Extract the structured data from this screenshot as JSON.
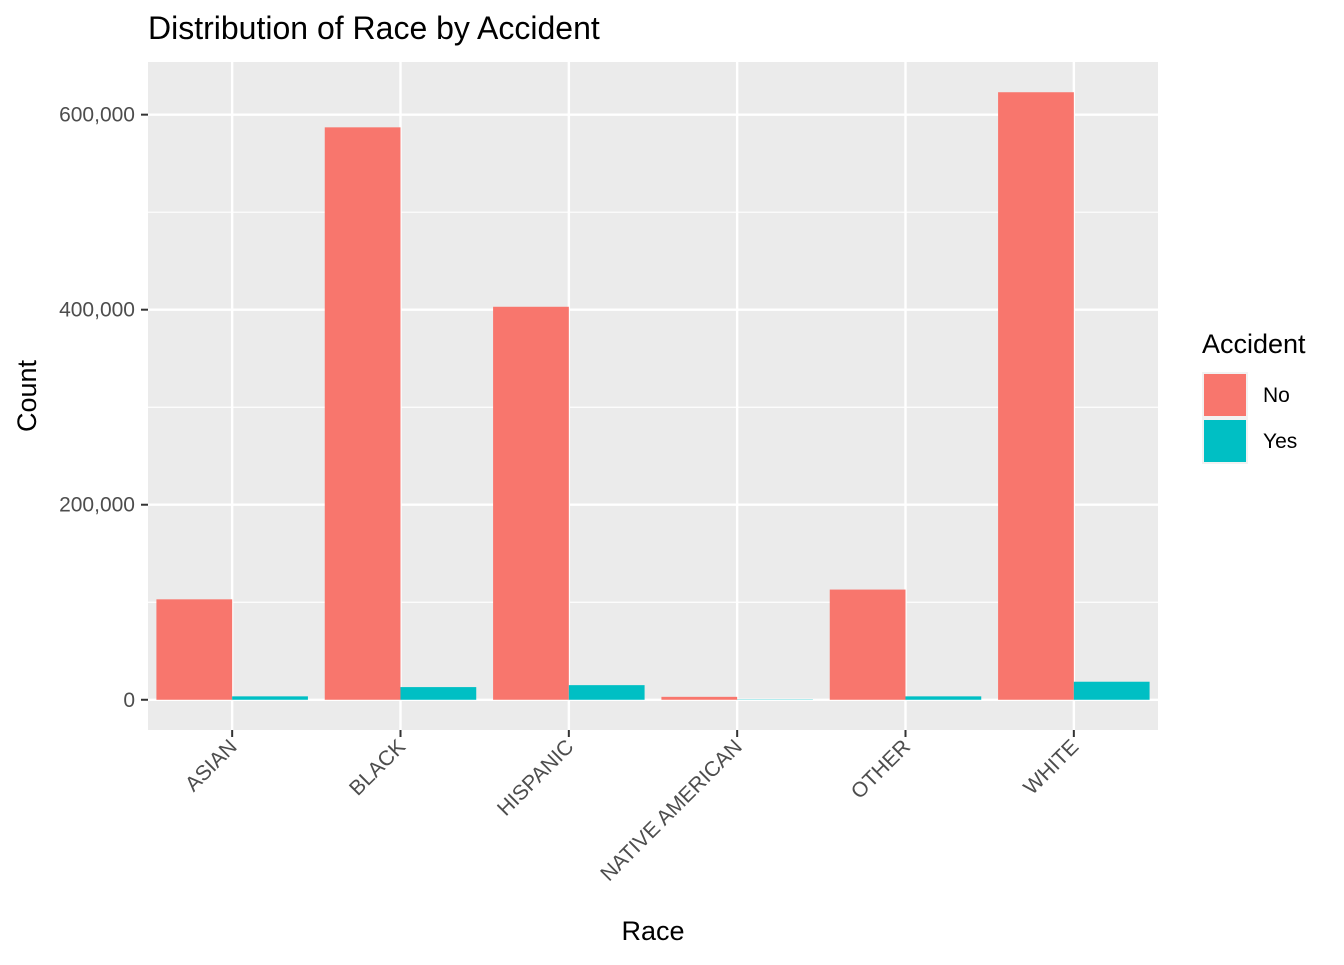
{
  "chart_data": {
    "type": "bar",
    "title": "Distribution of Race by Accident",
    "xlabel": "Race",
    "ylabel": "Count",
    "categories": [
      "ASIAN",
      "BLACK",
      "HISPANIC",
      "NATIVE AMERICAN",
      "OTHER",
      "WHITE"
    ],
    "series": [
      {
        "name": "No",
        "color": "#F8766D",
        "values": [
          103000,
          587000,
          403000,
          3000,
          113000,
          623000
        ]
      },
      {
        "name": "Yes",
        "color": "#00BFC4",
        "values": [
          3500,
          13000,
          15000,
          300,
          3500,
          18500
        ]
      }
    ],
    "ylim": [
      -31000,
      654000
    ],
    "yticks": [
      0,
      200000,
      400000,
      600000
    ],
    "ytick_labels": [
      "0",
      "200,000",
      "400,000",
      "600,000"
    ],
    "grid": true,
    "legend": {
      "title": "Accident",
      "placement": "right"
    },
    "panel_background": "#EBEBEB",
    "grid_color": "#FFFFFF"
  }
}
